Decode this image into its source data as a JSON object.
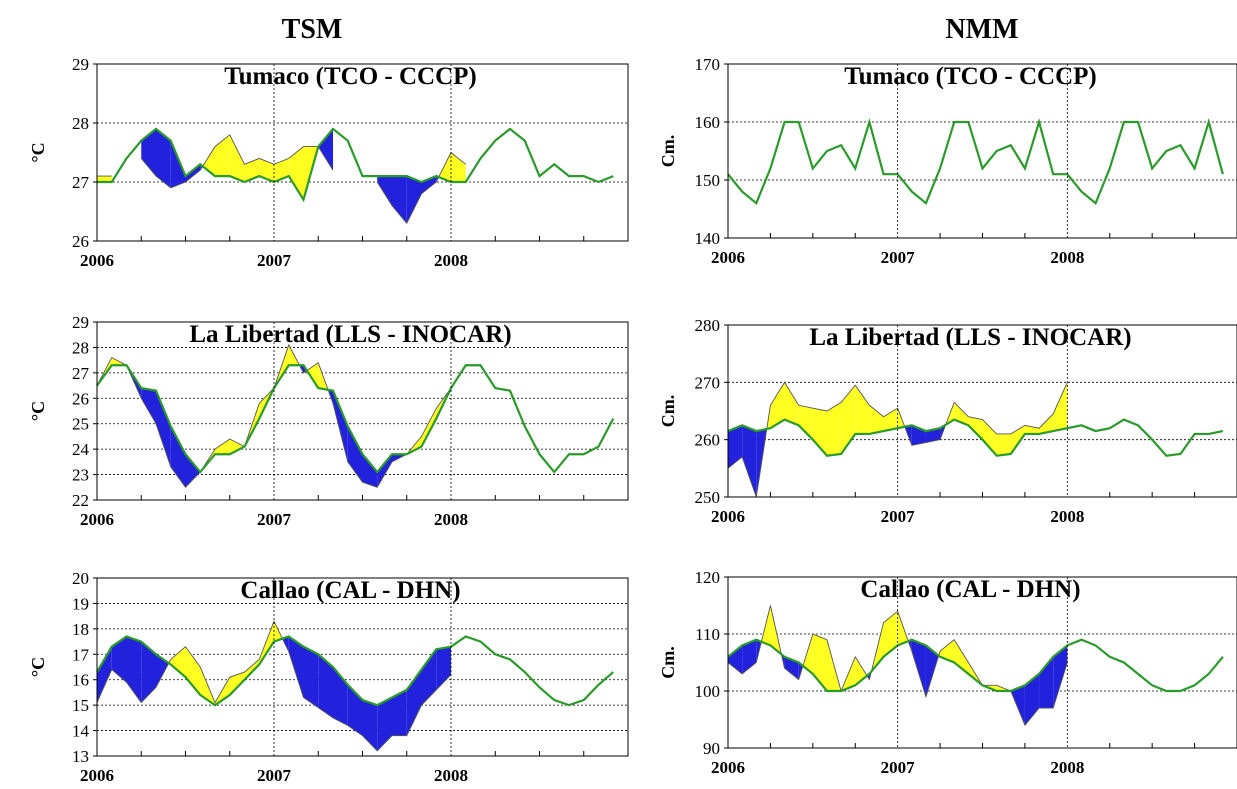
{
  "column_titles": {
    "left": "TSM",
    "right": "NMM"
  },
  "colors": {
    "line": "#2a9a2a",
    "positive_fill": "#ffff22",
    "negative_fill": "#2222dd",
    "outline": "#555555"
  },
  "chart_data": [
    {
      "type": "area",
      "title": "Tumaco (TCO - CCCP)",
      "ylabel": "°C",
      "xlabel": "",
      "ylim": [
        26,
        29
      ],
      "yticks": [
        26,
        27,
        28,
        29
      ],
      "xlim": [
        0,
        36
      ],
      "xticks": [
        {
          "x": 0,
          "label": "2006"
        },
        {
          "x": 12,
          "label": "2007"
        },
        {
          "x": 24,
          "label": "2008"
        }
      ],
      "grid": true,
      "series": [
        {
          "role": "climatology",
          "values": [
            27.0,
            27.0,
            27.4,
            27.7,
            27.9,
            27.7,
            27.1,
            27.3,
            27.1,
            27.1,
            27.0,
            27.1,
            27.0,
            27.1,
            26.7,
            27.6,
            27.9,
            27.7,
            27.1,
            27.1,
            27.1,
            27.1,
            27.0,
            27.1,
            27.0,
            27.0,
            27.4,
            27.7,
            27.9,
            27.7,
            27.1,
            27.3,
            27.1,
            27.1,
            27.0,
            27.1
          ]
        },
        {
          "role": "observed",
          "values": [
            27.1,
            27.1,
            null,
            27.4,
            27.1,
            26.9,
            27.0,
            27.2,
            27.6,
            27.8,
            27.3,
            27.4,
            27.3,
            27.4,
            27.6,
            27.6,
            27.2,
            null,
            null,
            27.0,
            26.6,
            26.3,
            26.8,
            27.0,
            27.5,
            27.3
          ]
        }
      ]
    },
    {
      "type": "area",
      "title": "La Libertad (LLS - INOCAR)",
      "ylabel": "°C",
      "xlabel": "",
      "ylim": [
        22,
        29
      ],
      "yticks": [
        22,
        23,
        24,
        25,
        26,
        27,
        28,
        29
      ],
      "xlim": [
        0,
        36
      ],
      "xticks": [
        {
          "x": 0,
          "label": "2006"
        },
        {
          "x": 12,
          "label": "2007"
        },
        {
          "x": 24,
          "label": "2008"
        }
      ],
      "grid": true,
      "series": [
        {
          "role": "climatology",
          "values": [
            26.5,
            27.3,
            27.3,
            26.4,
            26.3,
            24.9,
            23.8,
            23.1,
            23.8,
            23.8,
            24.1,
            25.2,
            26.4,
            27.3,
            27.3,
            26.4,
            26.3,
            24.9,
            23.8,
            23.1,
            23.8,
            23.8,
            24.1,
            25.2,
            26.4,
            27.3,
            27.3,
            26.4,
            26.3,
            24.9,
            23.8,
            23.1,
            23.8,
            23.8,
            24.1,
            25.2
          ]
        },
        {
          "role": "observed",
          "values": [
            26.5,
            27.6,
            27.3,
            26.0,
            25.0,
            23.3,
            22.5,
            23.1,
            24.0,
            24.4,
            24.1,
            25.8,
            26.4,
            28.1,
            27.0,
            27.4,
            25.8,
            23.5,
            22.7,
            22.5,
            23.5,
            23.8,
            24.5,
            25.6,
            26.4
          ]
        }
      ]
    },
    {
      "type": "area",
      "title": "Callao (CAL - DHN)",
      "ylabel": "°C",
      "xlabel": "",
      "ylim": [
        13,
        20
      ],
      "yticks": [
        13,
        14,
        15,
        16,
        17,
        18,
        19,
        20
      ],
      "xlim": [
        0,
        36
      ],
      "xticks": [
        {
          "x": 0,
          "label": "2006"
        },
        {
          "x": 12,
          "label": "2007"
        },
        {
          "x": 24,
          "label": "2008"
        }
      ],
      "grid": true,
      "series": [
        {
          "role": "climatology",
          "values": [
            16.3,
            17.3,
            17.7,
            17.5,
            17.0,
            16.6,
            16.1,
            15.4,
            15.0,
            15.4,
            16.0,
            16.6,
            17.5,
            17.7,
            17.3,
            17.0,
            16.5,
            15.8,
            15.2,
            15.0,
            15.3,
            15.6,
            16.4,
            17.2,
            17.3,
            17.7,
            17.5,
            17.0,
            16.8,
            16.3,
            15.7,
            15.2,
            15.0,
            15.2,
            15.8,
            16.3
          ]
        },
        {
          "role": "observed",
          "values": [
            15.1,
            16.4,
            15.9,
            15.1,
            15.7,
            16.8,
            17.3,
            16.5,
            15.1,
            16.1,
            16.3,
            16.8,
            18.3,
            17.1,
            15.3,
            14.9,
            14.5,
            14.2,
            13.8,
            13.2,
            13.8,
            13.8,
            15.0,
            15.6,
            16.2
          ]
        }
      ]
    },
    {
      "type": "area",
      "title": "Tumaco (TCO - CCCP)",
      "ylabel": "Cm.",
      "xlabel": "",
      "ylim": [
        140,
        170
      ],
      "yticks": [
        140,
        150,
        160,
        170
      ],
      "xlim": [
        0,
        36
      ],
      "xticks": [
        {
          "x": 0,
          "label": "2006"
        },
        {
          "x": 12,
          "label": "2007"
        },
        {
          "x": 24,
          "label": "2008"
        }
      ],
      "grid": true,
      "series": [
        {
          "role": "climatology",
          "values": [
            151,
            148,
            146,
            152,
            160,
            160,
            152,
            155,
            156,
            152,
            160,
            151,
            151,
            148,
            146,
            152,
            160,
            160,
            152,
            155,
            156,
            152,
            160,
            151,
            151,
            148,
            146,
            152,
            160,
            160,
            152,
            155,
            156,
            152,
            160,
            151
          ]
        }
      ]
    },
    {
      "type": "area",
      "title": "La Libertad (LLS - INOCAR)",
      "ylabel": "Cm.",
      "xlabel": "",
      "ylim": [
        250,
        280
      ],
      "yticks": [
        250,
        260,
        270,
        280
      ],
      "xlim": [
        0,
        36
      ],
      "xticks": [
        {
          "x": 0,
          "label": "2006"
        },
        {
          "x": 12,
          "label": "2007"
        },
        {
          "x": 24,
          "label": "2008"
        }
      ],
      "grid": true,
      "series": [
        {
          "role": "climatology",
          "values": [
            261.5,
            262.5,
            261.5,
            262.0,
            263.5,
            262.5,
            260.0,
            257.2,
            257.5,
            261.0,
            261.0,
            261.5,
            262.0,
            262.5,
            261.5,
            262.0,
            263.5,
            262.5,
            260.0,
            257.2,
            257.5,
            261.0,
            261.0,
            261.5,
            262.0,
            262.5,
            261.5,
            262.0,
            263.5,
            262.5,
            260.0,
            257.2,
            257.5,
            261.0,
            261.0,
            261.5
          ]
        },
        {
          "role": "observed",
          "values": [
            255,
            257,
            250,
            266,
            270,
            266,
            265.5,
            265,
            266.5,
            269.5,
            266,
            264,
            265.5,
            259,
            259.5,
            260,
            266.5,
            264,
            263.5,
            261,
            261,
            262.5,
            262,
            264.5,
            270
          ]
        }
      ]
    },
    {
      "type": "area",
      "title": "Callao (CAL - DHN)",
      "ylabel": "Cm.",
      "xlabel": "",
      "ylim": [
        90,
        120
      ],
      "yticks": [
        90,
        100,
        110,
        120
      ],
      "xlim": [
        0,
        36
      ],
      "xticks": [
        {
          "x": 0,
          "label": "2006"
        },
        {
          "x": 12,
          "label": "2007"
        },
        {
          "x": 24,
          "label": "2008"
        }
      ],
      "grid": true,
      "series": [
        {
          "role": "climatology",
          "values": [
            106,
            108,
            109,
            108,
            106,
            105,
            103,
            100,
            100,
            101,
            103,
            106,
            108,
            109,
            108,
            106,
            105,
            103,
            101,
            100,
            100,
            101,
            103,
            106,
            108,
            109,
            108,
            106,
            105,
            103,
            101,
            100,
            100,
            101,
            103,
            106
          ]
        },
        {
          "role": "observed",
          "values": [
            105,
            103,
            105,
            115,
            104,
            102,
            110,
            109,
            100,
            106,
            102,
            112,
            114,
            107,
            99,
            107,
            109,
            105,
            101,
            101,
            100,
            94,
            97,
            97,
            105
          ]
        }
      ]
    }
  ]
}
